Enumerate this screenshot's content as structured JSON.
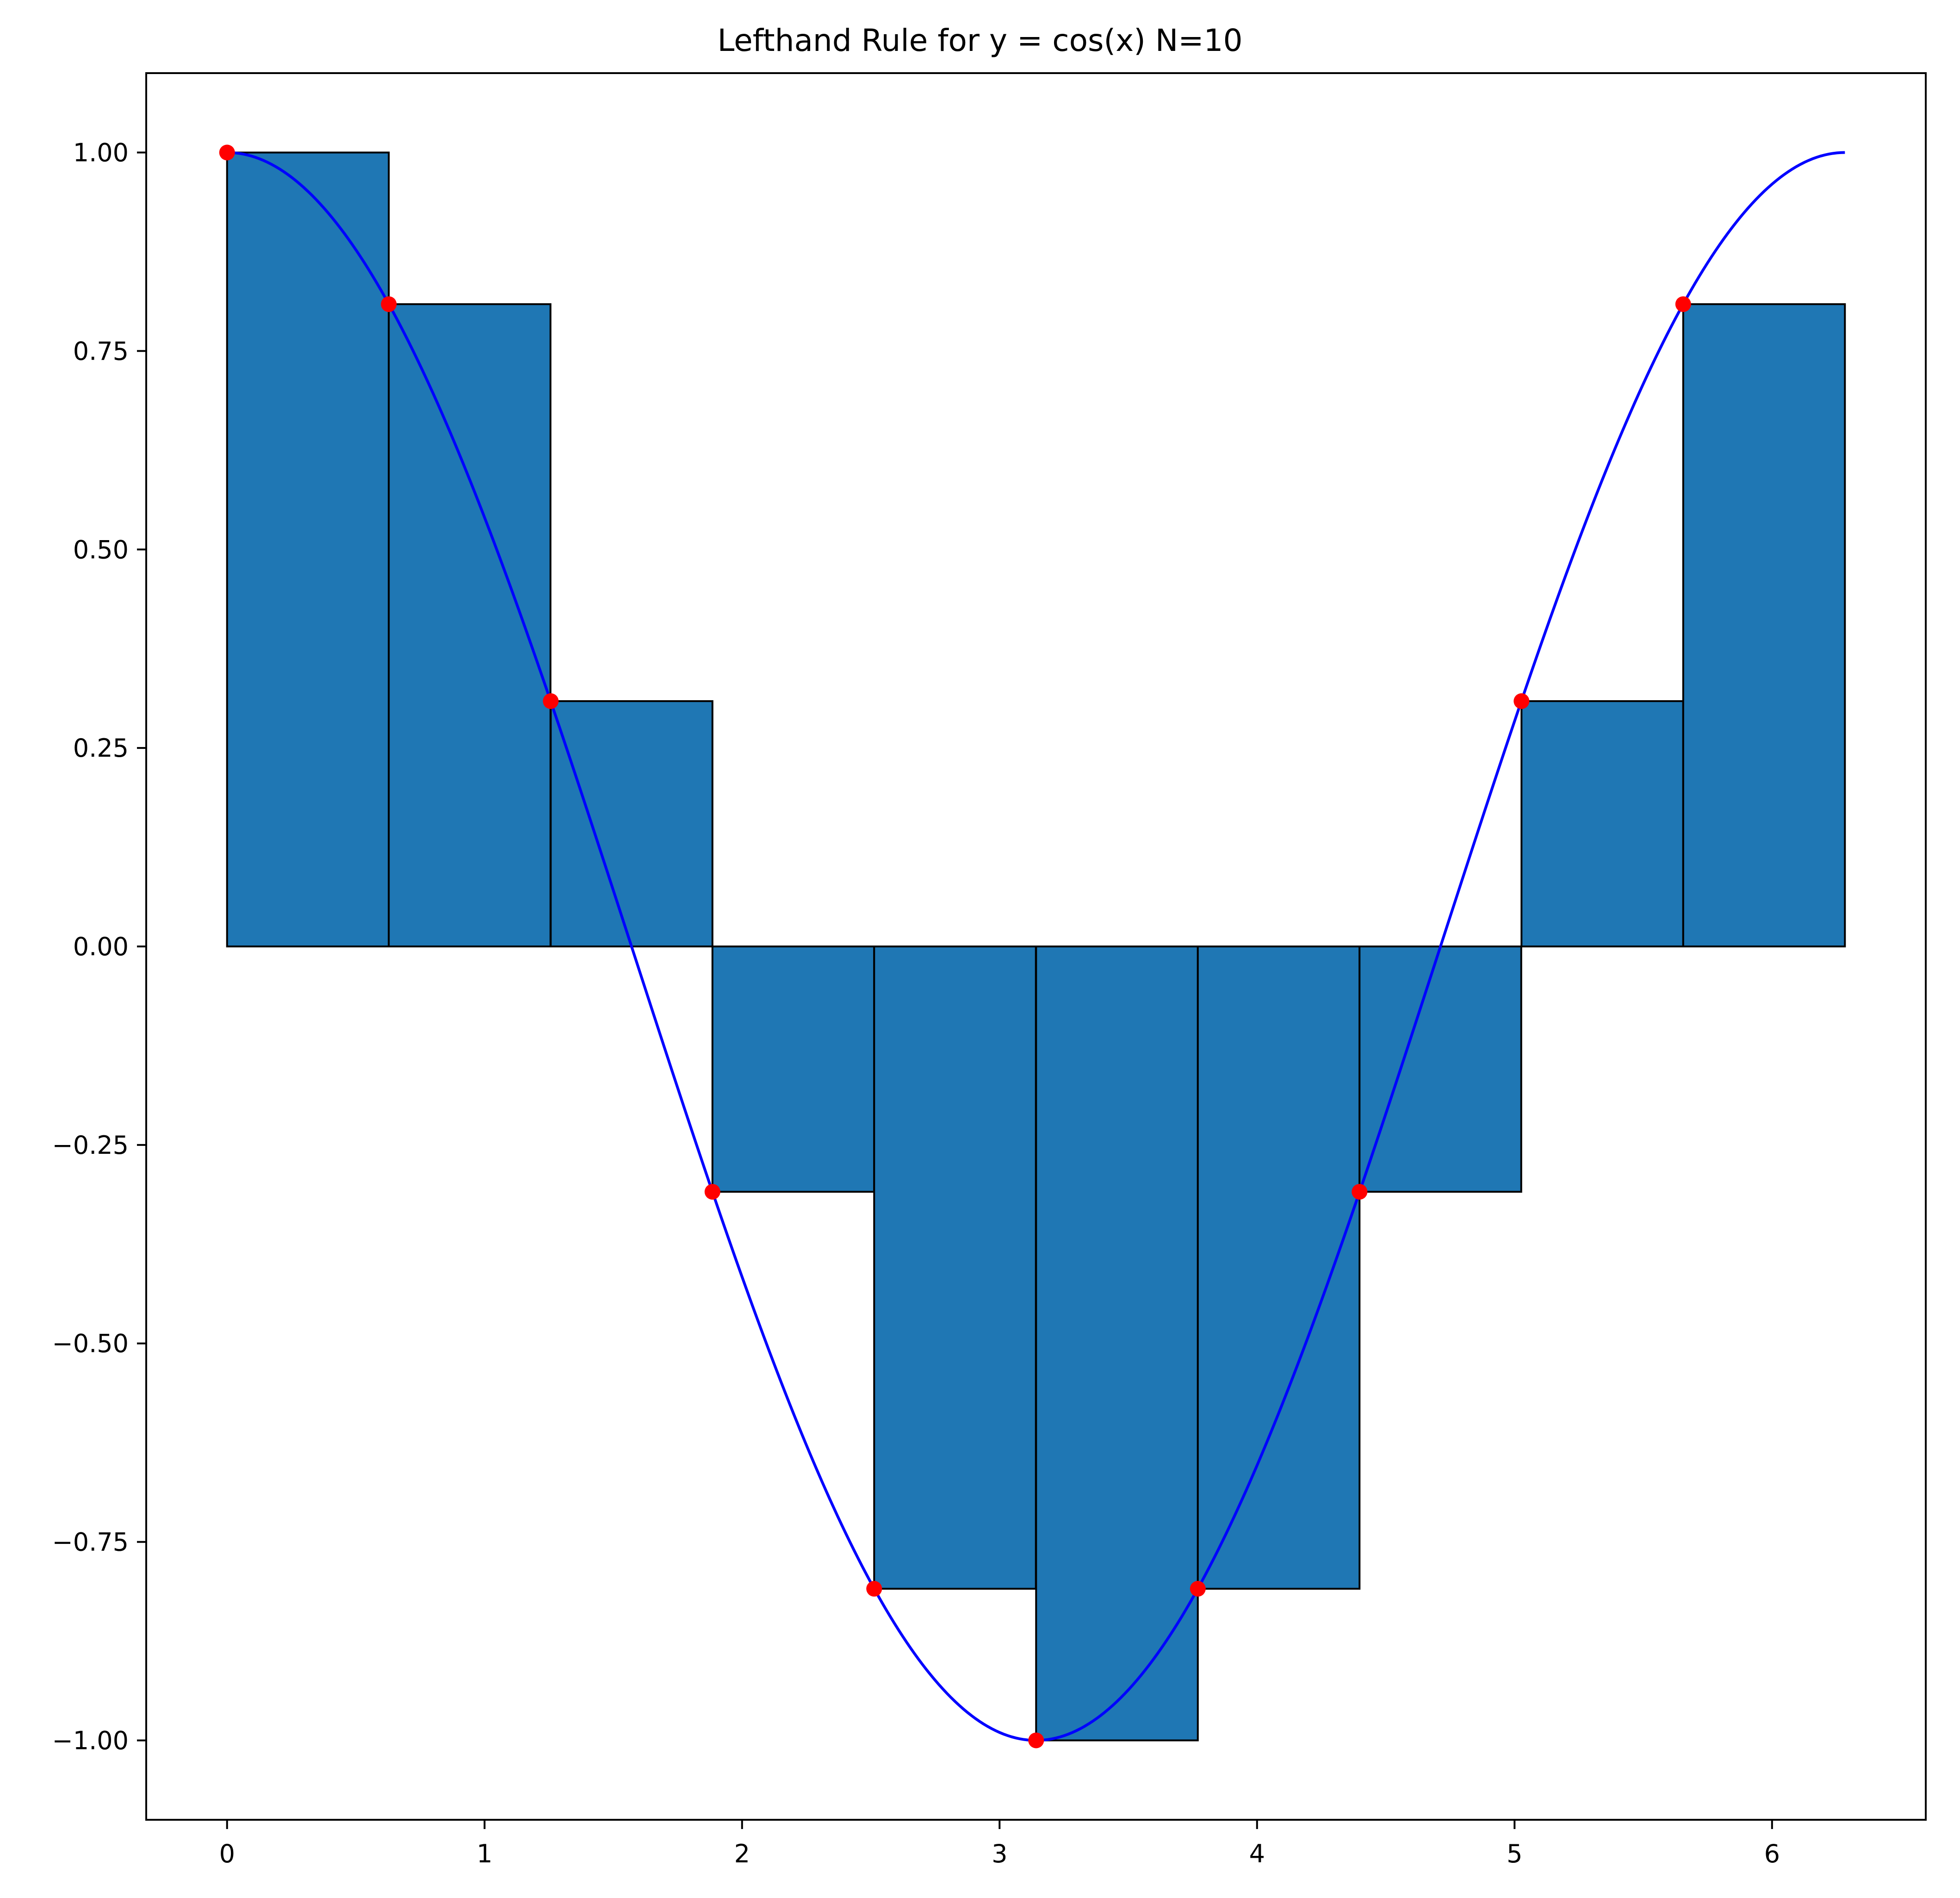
{
  "chart_data": {
    "type": "bar",
    "title": "Lefthand Rule for y = cos(x) N=10",
    "xlabel": "",
    "ylabel": "",
    "xlim": [
      -0.314,
      6.597
    ],
    "ylim": [
      -1.1,
      1.1
    ],
    "x_ticks": [
      0,
      1,
      2,
      3,
      4,
      5,
      6
    ],
    "x_tick_labels": [
      "0",
      "1",
      "2",
      "3",
      "4",
      "5",
      "6"
    ],
    "y_ticks": [
      1.0,
      0.75,
      0.5,
      0.25,
      0.0,
      -0.25,
      -0.5,
      -0.75,
      -1.0
    ],
    "y_tick_labels": [
      "1.00",
      "0.75",
      "0.50",
      "0.25",
      "0.00",
      "−0.25",
      "−0.50",
      "−0.75",
      "−1.00"
    ],
    "grid": false,
    "bars": {
      "x_left": [
        0.0,
        0.628,
        1.257,
        1.885,
        2.513,
        3.142,
        3.77,
        4.398,
        5.027,
        5.655
      ],
      "width": 0.628,
      "heights": [
        1.0,
        0.809,
        0.309,
        -0.309,
        -0.809,
        -1.0,
        -0.809,
        -0.309,
        0.309,
        0.809
      ],
      "fill_color": "#1f77b4",
      "edge_color": "#000000"
    },
    "curve": {
      "function": "cos(x)",
      "x_range": [
        0,
        6.283
      ],
      "color": "#0000ff"
    },
    "sample_points": {
      "x": [
        0.0,
        0.628,
        1.257,
        1.885,
        2.513,
        3.142,
        3.77,
        4.398,
        5.027,
        5.655
      ],
      "y": [
        1.0,
        0.809,
        0.309,
        -0.309,
        -0.809,
        -1.0,
        -0.809,
        -0.309,
        0.309,
        0.809
      ],
      "color": "#ff0000"
    }
  }
}
